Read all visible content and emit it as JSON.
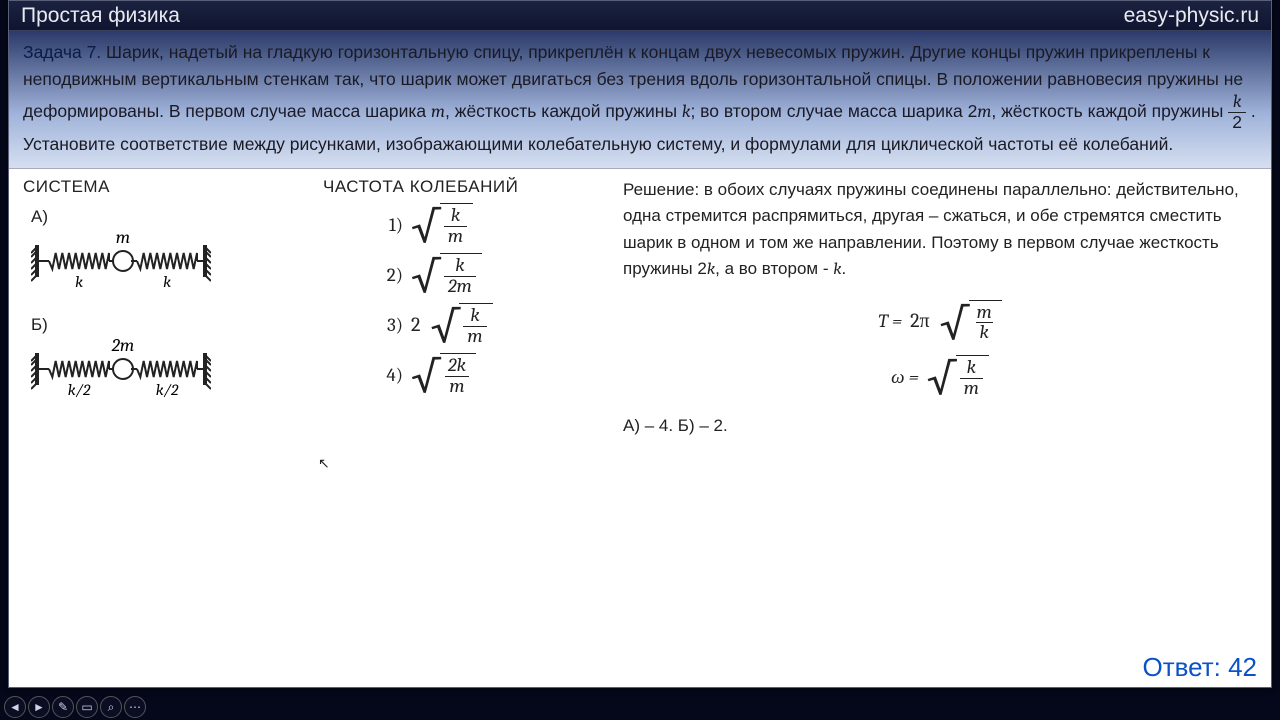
{
  "header": {
    "title": "Простая физика",
    "site": "easy-physic.ru"
  },
  "problem": {
    "lead": "Задача 7.",
    "text_html": "Шарик, надетый на гладкую горизонтальную спицу, прикреплён к концам двух невесомых пружин. Другие концы пружин прикреплены к неподвижным вертикальным стенкам так, что шарик может двигаться без трения вдоль горизонтальной спицы. В положении равновесия пружины не деформированы. В первом случае масса шарика <span class='ital'>m</span>, жёсткость каждой пружины <span class='ital'>k</span>; во втором случае масса шарика 2<span class='ital'>m</span>, жёсткость каждой пружины <span class='frac' style='vertical-align:middle'><span class='fnum ital'>k</span><span class='fden'>2</span></span> . Установите соответствие между рисунками, изображающими колебательную систему, и формулами для циклической частоты её колебаний."
  },
  "columns": {
    "system": "СИСТЕМА",
    "freq": "ЧАСТОТА КОЛЕБАНИЙ"
  },
  "systems": [
    {
      "label": "А)",
      "mass": "m",
      "k_left": "k",
      "k_right": "k"
    },
    {
      "label": "Б)",
      "mass": "2m",
      "k_left": "k/2",
      "k_right": "k/2"
    }
  ],
  "freq_options": [
    {
      "n": "1)",
      "coef": "",
      "num": "k",
      "den": "m"
    },
    {
      "n": "2)",
      "coef": "",
      "num": "k",
      "den": "2m"
    },
    {
      "n": "3)",
      "coef": "2",
      "num": "k",
      "den": "m"
    },
    {
      "n": "4)",
      "coef": "",
      "num": "2k",
      "den": "m"
    }
  ],
  "solution": {
    "text_html": "Решение: в обоих случаях пружины соединены параллельно: действительно, одна стремится распрямиться, другая – сжаться, и обе стремятся сместить шарик в одном и том же направлении. Поэтому в первом случае жесткость пружины 2<span class='ital'>k</span>, а во втором - <span class='ital'>k</span>.",
    "eqs": [
      {
        "lhs": "T =",
        "coef": "2π",
        "num": "m",
        "den": "k"
      },
      {
        "lhs": "ω =",
        "coef": "",
        "num": "k",
        "den": "m"
      }
    ],
    "match": "А) – 4. Б) – 2.",
    "answer_label": "Ответ: 42"
  },
  "toolbar_icons": [
    "◄",
    "►",
    "✎",
    "▭",
    "⌕",
    "⋯"
  ],
  "colors": {
    "title_text": "#e9eaf0",
    "answer": "#0a52c7",
    "spring_stroke": "#222222"
  }
}
